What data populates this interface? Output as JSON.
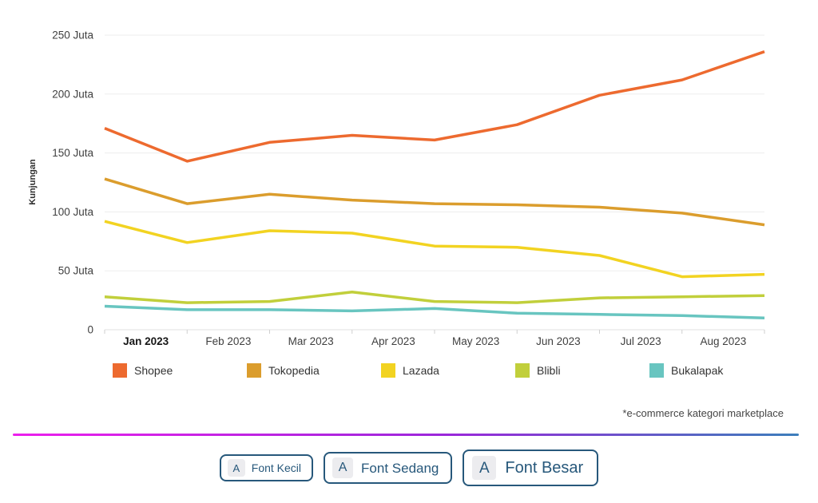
{
  "chart_data": {
    "type": "line",
    "title": "",
    "ylabel": "Kunjungan",
    "xlabel": "",
    "x_labels": [
      "Jan 2023",
      "Feb 2023",
      "Mar 2023",
      "Apr 2023",
      "May 2023",
      "Jun 2023",
      "Jul 2023",
      "Aug 2023"
    ],
    "x_labels_layout": "labels centered between 9 axis ticks; first label bold",
    "ylim": [
      0,
      250
    ],
    "y_ticks": [
      {
        "value": 0,
        "label": "0"
      },
      {
        "value": 50,
        "label": "50 Juta"
      },
      {
        "value": 100,
        "label": "100 Juta"
      },
      {
        "value": 150,
        "label": "150 Juta"
      },
      {
        "value": 200,
        "label": "200 Juta"
      },
      {
        "value": 250,
        "label": "250 Juta"
      }
    ],
    "unit": "Juta",
    "grid": true,
    "legend_position": "bottom",
    "series": [
      {
        "name": "Shopee",
        "color": "#ED6A2F",
        "values": [
          171,
          143,
          159,
          165,
          161,
          174,
          199,
          212,
          236
        ]
      },
      {
        "name": "Tokopedia",
        "color": "#DB9D2D",
        "values": [
          128,
          107,
          115,
          110,
          107,
          106,
          104,
          99,
          89
        ]
      },
      {
        "name": "Lazada",
        "color": "#F2D321",
        "values": [
          92,
          74,
          84,
          82,
          71,
          70,
          63,
          45,
          47
        ]
      },
      {
        "name": "Blibli",
        "color": "#C1CF3B",
        "values": [
          28,
          23,
          24,
          32,
          24,
          23,
          27,
          28,
          29
        ]
      },
      {
        "name": "Bukalapak",
        "color": "#68C5C0",
        "values": [
          20,
          17,
          17,
          16,
          18,
          14,
          13,
          12,
          10
        ]
      }
    ]
  },
  "footnote": "*e-commerce kategori marketplace",
  "font_buttons": [
    {
      "badge": "A",
      "label": "Font Kecil"
    },
    {
      "badge": "A",
      "label": "Font Sedang"
    },
    {
      "badge": "A",
      "label": "Font Besar"
    }
  ],
  "divider_colors": {
    "start": "#EC1FEC",
    "middle": "#9B27DA",
    "end": "#3C7EBB"
  }
}
